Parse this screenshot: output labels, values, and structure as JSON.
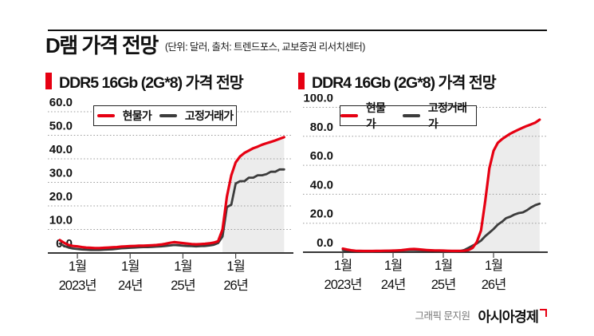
{
  "header": {
    "title": "D램 가격 전망",
    "subtitle": "(단위: 달러, 출처: 트렌드포스, 교보증권 리서치센터)"
  },
  "footer": {
    "credit": "그래픽 문지원",
    "brand": "아시아경제",
    "brand_mark_icon": "asiae-logo-mark"
  },
  "colors": {
    "spot_line": "#e60012",
    "contract_line": "#3c3c3c",
    "forecast_fill": "#ececec",
    "gridline": "#9a9a9a",
    "axis": "#1a1a1a",
    "accent_bar": "#e60012"
  },
  "legend": [
    "현물가",
    "고정거래가"
  ],
  "chart_data": [
    {
      "type": "line",
      "title": "DDR5 16Gb (2G*8) 가격 전망",
      "unit": "달러(USD)",
      "ylim": [
        0,
        60
      ],
      "y_ticks": [
        0,
        10,
        20,
        30,
        40,
        50,
        60
      ],
      "y_tick_labels": [
        "0.0",
        "10.0",
        "20.0",
        "30.0",
        "40.0",
        "50.0",
        "60.0"
      ],
      "x_start_month": "2022-09",
      "x_end_month": "2026-12",
      "x_ticks": [
        {
          "index": 4,
          "line1": "1월",
          "line2": "2023년"
        },
        {
          "index": 16,
          "line1": "1월",
          "line2": "24년"
        },
        {
          "index": 28,
          "line1": "1월",
          "line2": "25년"
        },
        {
          "index": 40,
          "line1": "1월",
          "line2": "26년"
        }
      ],
      "forecast_start_index": 37,
      "series": [
        {
          "name": "현물가",
          "role": "spot",
          "values": [
            5.5,
            4.3,
            3.4,
            3.0,
            2.8,
            2.5,
            2.3,
            2.2,
            2.1,
            2.1,
            2.2,
            2.3,
            2.4,
            2.5,
            2.7,
            2.8,
            2.9,
            3.0,
            3.1,
            3.1,
            3.2,
            3.3,
            3.4,
            3.6,
            3.9,
            4.3,
            4.6,
            4.4,
            4.2,
            4.0,
            3.8,
            3.7,
            3.8,
            3.9,
            4.1,
            4.4,
            5.0,
            10.0,
            24.0,
            33.0,
            38.5,
            41.0,
            42.5,
            43.5,
            44.5,
            45.2,
            46.0,
            46.6,
            47.2,
            47.8,
            48.5,
            49.2
          ]
        },
        {
          "name": "고정거래가",
          "role": "contract",
          "values": [
            4.0,
            3.0,
            2.3,
            1.9,
            1.7,
            1.5,
            1.4,
            1.3,
            1.3,
            1.3,
            1.4,
            1.5,
            1.6,
            1.8,
            2.0,
            2.1,
            2.2,
            2.3,
            2.4,
            2.5,
            2.5,
            2.6,
            2.7,
            2.8,
            3.0,
            3.2,
            3.4,
            3.3,
            3.1,
            3.0,
            2.9,
            2.8,
            2.9,
            3.0,
            3.2,
            3.5,
            4.2,
            7.0,
            19.5,
            20.5,
            29.5,
            30.5,
            30.5,
            32.0,
            32.0,
            33.0,
            33.0,
            33.5,
            34.5,
            34.5,
            35.5,
            35.5
          ]
        }
      ]
    },
    {
      "type": "line",
      "title": "DDR4 16Gb (2G*8) 가격 전망",
      "unit": "달러(USD)",
      "ylim": [
        0,
        100
      ],
      "y_ticks": [
        0,
        20,
        40,
        60,
        80,
        100
      ],
      "y_tick_labels": [
        "0.0",
        "20.0",
        "40.0",
        "60.0",
        "80.0",
        "100.0"
      ],
      "x_start_month": "2023-01",
      "x_end_month": "2026-12",
      "x_ticks": [
        {
          "index": 0,
          "line1": "1월",
          "line2": "2023년"
        },
        {
          "index": 12,
          "line1": "1월",
          "line2": "24년"
        },
        {
          "index": 24,
          "line1": "1월",
          "line2": "25년"
        },
        {
          "index": 36,
          "line1": "1월",
          "line2": "26년"
        }
      ],
      "forecast_start_index": 30,
      "series": [
        {
          "name": "현물가",
          "role": "spot",
          "values": [
            2.5,
            1.8,
            1.3,
            1.0,
            0.9,
            0.8,
            0.8,
            0.8,
            0.9,
            0.9,
            1.0,
            1.0,
            1.1,
            1.2,
            1.4,
            1.7,
            2.1,
            2.2,
            2.0,
            1.7,
            1.5,
            1.3,
            1.2,
            1.2,
            1.1,
            1.0,
            0.9,
            0.9,
            0.9,
            1.0,
            1.5,
            3.0,
            7.0,
            15.0,
            35.0,
            58.0,
            70.0,
            75.5,
            78.0,
            80.0,
            81.8,
            83.3,
            84.7,
            86.0,
            87.2,
            88.3,
            89.5,
            91.5
          ]
        },
        {
          "name": "고정거래가",
          "role": "contract",
          "values": [
            1.5,
            1.1,
            0.9,
            0.8,
            0.7,
            0.7,
            0.7,
            0.7,
            0.8,
            0.8,
            0.9,
            1.0,
            1.1,
            1.2,
            1.3,
            1.4,
            1.5,
            1.5,
            1.4,
            1.3,
            1.2,
            1.1,
            1.0,
            0.9,
            0.8,
            0.7,
            0.6,
            0.6,
            0.8,
            1.5,
            3.0,
            4.5,
            6.0,
            8.0,
            11.0,
            13.5,
            16.0,
            19.0,
            21.0,
            23.5,
            24.5,
            26.0,
            27.0,
            27.5,
            29.0,
            31.0,
            32.5,
            33.5
          ]
        }
      ]
    }
  ]
}
